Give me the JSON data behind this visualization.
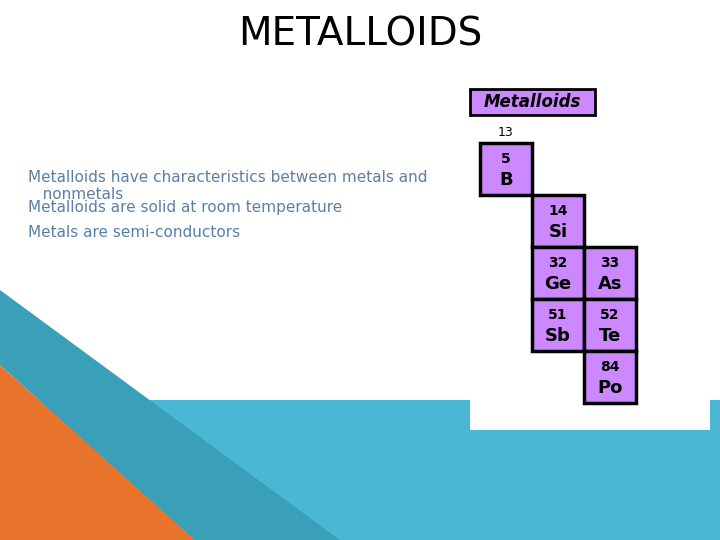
{
  "title": "METALLOIDS",
  "title_fontsize": 28,
  "title_color": "#000000",
  "bg_color": "#ffffff",
  "bullet_texts": [
    "Metalloids have characteristics between metals and\n   nonmetals",
    "Metalloids are solid at room temperature",
    "Metals are semi-conductors"
  ],
  "bullet_color": "#5b7fa6",
  "bullet_fontsize": 11,
  "legend_label": "Metalloids",
  "legend_box_color": "#cc88ff",
  "legend_border_color": "#000000",
  "element_color": "#cc88ff",
  "orange_color": "#e8732a",
  "blue_color": "#4ab8d4"
}
